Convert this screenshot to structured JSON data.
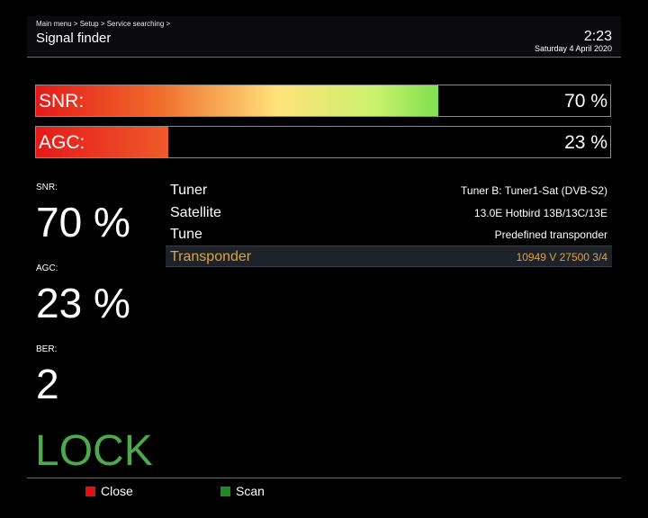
{
  "header": {
    "breadcrumb": "Main menu > Setup > Service searching >",
    "title": "Signal finder",
    "time": "2:23",
    "date": "Saturday  4 April 2020"
  },
  "bars": {
    "snr": {
      "label": "SNR:",
      "value_text": "70 %",
      "percent": 70
    },
    "agc": {
      "label": "AGC:",
      "value_text": "23 %",
      "percent": 23
    }
  },
  "metrics": {
    "snr": {
      "label": "SNR:",
      "value": "70 %"
    },
    "agc": {
      "label": "AGC:",
      "value": "23 %"
    },
    "ber": {
      "label": "BER:",
      "value": "2"
    },
    "status": "LOCK"
  },
  "info": [
    {
      "key": "Tuner",
      "value": "Tuner B: Tuner1-Sat (DVB-S2)"
    },
    {
      "key": "Satellite",
      "value": "13.0E Hotbird 13B/13C/13E"
    },
    {
      "key": "Tune",
      "value": "Predefined transponder"
    },
    {
      "key": "Transponder",
      "value": "10949 V 27500 3/4",
      "selected": true
    }
  ],
  "footer": {
    "red": {
      "label": "Close",
      "color": "#e01010"
    },
    "green": {
      "label": "Scan",
      "color": "#1f8a1f"
    }
  },
  "colors": {
    "lock": "#4ea84e",
    "selected_text": "#e0a23a"
  }
}
